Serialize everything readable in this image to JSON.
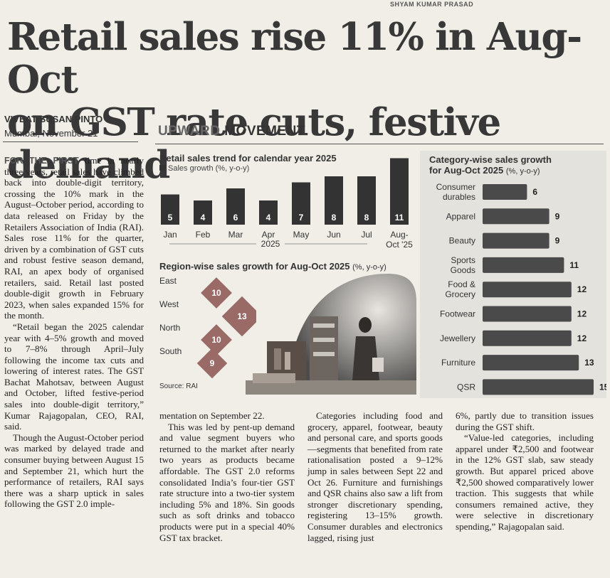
{
  "credit": "SHYAM KUMAR PRASAD",
  "headline": {
    "line1": "Retail sales rise 11% in Aug-Oct",
    "line2": "on GST rate cuts, festive demand"
  },
  "byline": {
    "author": "VIVEAT SUSAN PINTO",
    "dateline": "Mumbai, November 21"
  },
  "article": {
    "col1_lead": "FOR THE FIRST",
    "col1_text": " time in nearly three years, retail sales have climbed back into double-digit territory, crossing the 10% mark in the August–October period, according to data released on Friday by the Retailers Association of India (RAI). Sales rose 11% for the quarter, driven by a combination of GST cuts and robust festive season demand, RAI, an apex body of organised retailers, said. Retail last posted double-digit growth in February 2023, when sales expanded 15% for the month.",
    "col1_p2": "“Retail began the 2025 calendar year with 4–5% growth and moved to 7–8% through April–July following the income tax cuts and lowering of interest rates. The GST Bachat Mahotsav, between August and October, lifted festive-period sales into double-digit territory,” Kumar Rajagopalan, CEO, RAI, said.",
    "col1_p3": "Though the August-October period was marked by delayed trade and consumer buying between August 15 and September 21, which hurt the performance of retailers, RAI says there was a sharp uptick in sales following the GST 2.0 imple-",
    "col2_p1": "mentation on September 22.",
    "col2_p2": "This was led by pent-up demand and value segment buyers who returned to the market after nearly two years as products became affordable. The GST 2.0 reforms consolidated India’s four-tier GST rate structure into a two-tier system including 5% and 18%. Sin goods such as soft drinks and tobacco products were put in a special 40% GST tax bracket.",
    "col3_p1": "Categories including food and grocery, apparel, footwear, beauty and personal care, and sports goods—segments that benefited from rate rationalisation posted a 9–12% jump in sales between Sept 22 and Oct 26. Furniture and furnishings and QSR chains also saw a lift from stronger discretionary spending, registering 13–15% growth. Consumer durables and electronics lagged, rising just",
    "col4_p1": "6%, partly due to transition issues during the GST shift.",
    "col4_p2": "“Value-led categories, including apparel under ₹2,500 and footwear in the 12% GST slab, saw steady growth. But apparel priced above ₹2,500 showed comparatively lower traction. This suggests that while consumers remained active, they were selective in discretionary spending,” Rajagopalan said."
  },
  "graphic": {
    "title_light": "UPWARD",
    "title_bold": "MOVEMENT",
    "source": "Source: RAI"
  },
  "trend": {
    "title": "Retail sales trend for calendar year 2025",
    "legend": "Sales growth (%, y-o-y)",
    "year_label": "2025"
  },
  "region": {
    "title": "Region-wise sales growth for Aug-Oct 2025",
    "units": "(%, y-o-y)"
  },
  "category": {
    "title": "Category-wise sales growth",
    "subtitle": "for Aug-Oct 2025",
    "units": "(%, y-o-y)"
  },
  "chart_data": [
    {
      "type": "bar",
      "title": "Retail sales trend for calendar year 2025",
      "legend": "Sales growth (%, y-o-y)",
      "categories": [
        "Jan",
        "Feb",
        "Mar",
        "Apr",
        "May",
        "Jun",
        "Jul",
        "Aug-Oct '25"
      ],
      "values": [
        5,
        4,
        6,
        4,
        7,
        8,
        8,
        11
      ],
      "colors": {
        "bar": "#333333",
        "label": "#ffffff"
      }
    },
    {
      "type": "bar",
      "title": "Region-wise sales growth for Aug-Oct 2025 (%, y-o-y)",
      "categories": [
        "East",
        "West",
        "North",
        "South"
      ],
      "values": [
        10,
        13,
        10,
        9
      ],
      "colors": {
        "diamond": "#9a6a66",
        "label": "#ffffff"
      }
    },
    {
      "type": "bar",
      "title": "Category-wise sales growth for Aug-Oct 2025 (%, y-o-y)",
      "categories": [
        "Consumer durables",
        "Apparel",
        "Beauty",
        "Sports Goods",
        "Food & Grocery",
        "Footwear",
        "Jewellery",
        "Furniture",
        "QSR"
      ],
      "values": [
        6,
        9,
        9,
        11,
        12,
        12,
        12,
        13,
        15
      ],
      "colors": {
        "bar": "#4a4a4a",
        "panel": "#e4e2dd"
      }
    }
  ]
}
